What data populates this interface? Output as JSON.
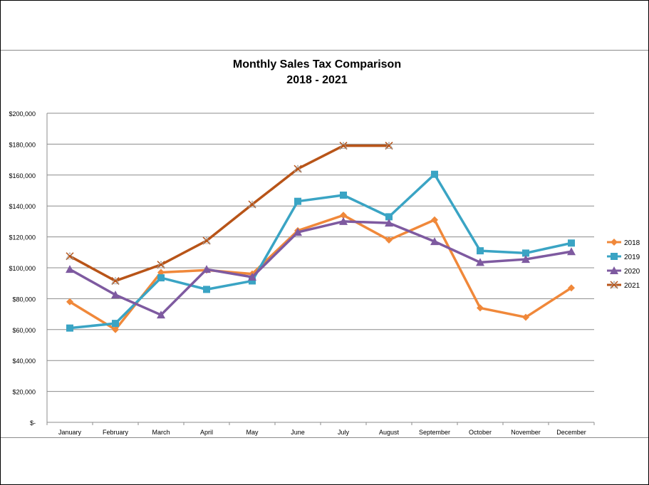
{
  "chart_data": {
    "type": "line",
    "title": "Monthly Sales Tax Comparison",
    "subtitle": "2018 - 2021",
    "xlabel": "",
    "ylabel": "",
    "ylim": [
      0,
      200000
    ],
    "yticks": [
      0,
      20000,
      40000,
      60000,
      80000,
      100000,
      120000,
      140000,
      160000,
      180000,
      200000
    ],
    "ytick_labels": [
      "$-",
      "$20,000",
      "$40,000",
      "$60,000",
      "$80,000",
      "$100,000",
      "$120,000",
      "$140,000",
      "$160,000",
      "$180,000",
      "$200,000"
    ],
    "categories": [
      "January",
      "February",
      "March",
      "April",
      "May",
      "June",
      "July",
      "August",
      "September",
      "October",
      "November",
      "December"
    ],
    "grid": true,
    "legend_position": "right",
    "series": [
      {
        "name": "2018",
        "color": "#F0883A",
        "marker": "diamond",
        "values": [
          78000,
          60000,
          97000,
          98500,
          96000,
          124000,
          134000,
          118000,
          131000,
          74000,
          68000,
          87000
        ]
      },
      {
        "name": "2019",
        "color": "#3AA4C4",
        "marker": "square",
        "values": [
          61000,
          64000,
          93500,
          86000,
          91500,
          143000,
          147000,
          133000,
          160500,
          111000,
          109500,
          116000
        ]
      },
      {
        "name": "2020",
        "color": "#7E5AA0",
        "marker": "triangle",
        "values": [
          99000,
          82500,
          69500,
          99000,
          94000,
          123000,
          130000,
          129000,
          117000,
          103500,
          105500,
          110500
        ]
      },
      {
        "name": "2021",
        "color": "#B85418",
        "marker": "x",
        "values": [
          107500,
          91500,
          102000,
          117500,
          141000,
          164000,
          179000,
          179000,
          null,
          null,
          null,
          null
        ]
      }
    ]
  }
}
